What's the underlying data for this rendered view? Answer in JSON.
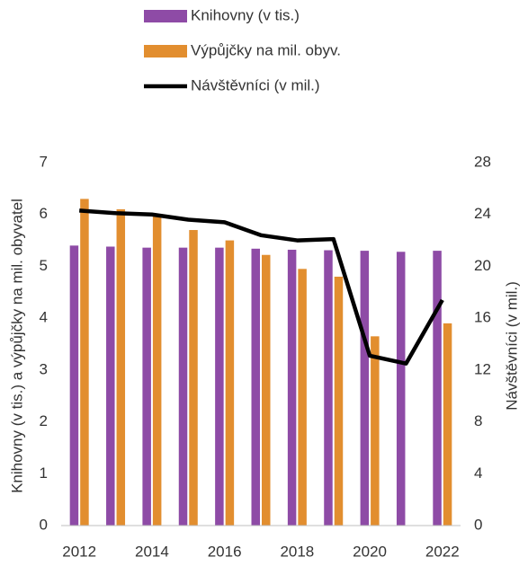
{
  "chart_data": {
    "type": "bar-line",
    "y_label": "Knihovny (v tis.) a výpůjčky na mil. obyvatel",
    "y2_label": "Návštěvníci (v mil.)",
    "categories": [
      "2012",
      null,
      "2014",
      null,
      "2016",
      null,
      "2018",
      null,
      "2020",
      null,
      "2022"
    ],
    "series": [
      {
        "name": "Knihovny (v tis.)",
        "type": "bar",
        "color": "#8e4ba6",
        "values": [
          5.4,
          5.38,
          5.36,
          5.36,
          5.36,
          5.34,
          5.32,
          5.31,
          5.3,
          5.28,
          5.3
        ]
      },
      {
        "name": "Výpůjčky na mil. obyv.",
        "type": "bar",
        "color": "#e28e2f",
        "values": [
          6.3,
          6.1,
          6.0,
          5.7,
          5.5,
          5.22,
          4.95,
          4.8,
          3.65,
          null,
          3.9
        ]
      },
      {
        "name": "Návštěvníci (v mil.)",
        "type": "line",
        "axis": "y2",
        "color": "#000000",
        "values": [
          24.3,
          24.1,
          24.0,
          23.6,
          23.4,
          22.4,
          22.0,
          22.1,
          13.1,
          12.5,
          17.4
        ]
      }
    ],
    "ylim": [
      0,
      7
    ],
    "yticks": [
      0,
      1,
      2,
      3,
      4,
      5,
      6,
      7
    ],
    "y2lim": [
      0,
      28
    ],
    "y2ticks": [
      0,
      4,
      8,
      12,
      16,
      20,
      24,
      28
    ],
    "grid": false,
    "legend": "top"
  }
}
